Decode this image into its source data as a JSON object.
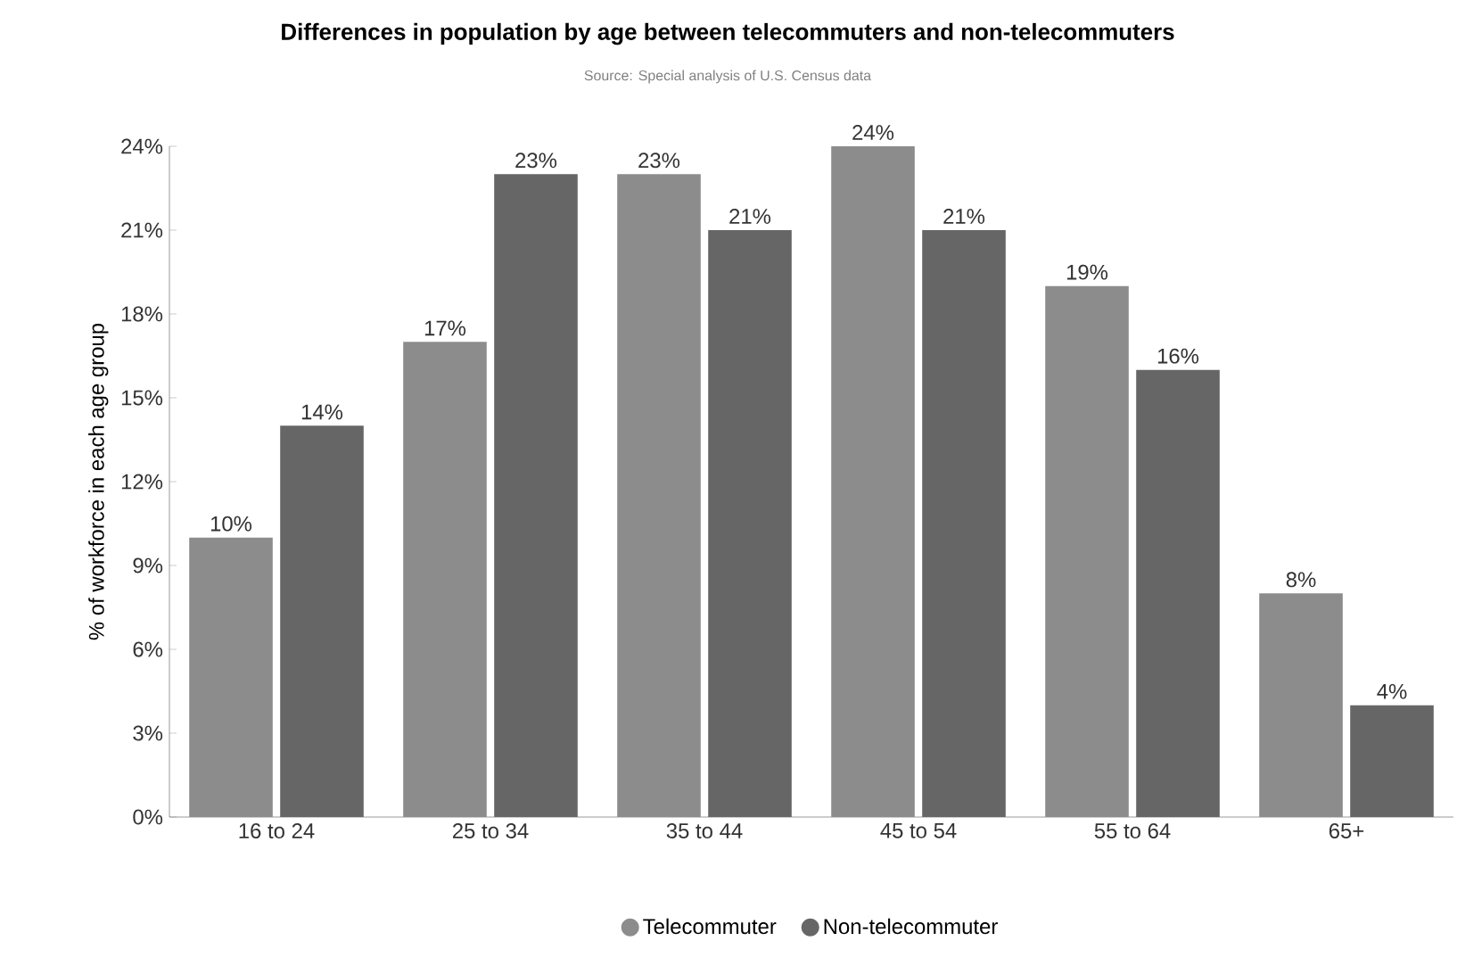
{
  "chart_data": {
    "type": "bar",
    "title": "Differences in population by age between telecommuters and non-telecommuters",
    "annotations": [
      "Source: Special analysis of U.S. Census data"
    ],
    "ylabel": "% of workforce in each age group",
    "categories": [
      "16 to 24",
      "25 to 34",
      "35 to 44",
      "45 to 54",
      "55 to 64",
      "65+"
    ],
    "series": [
      {
        "name": "Telecommuter",
        "color": "#8c8c8c",
        "values": [
          10,
          17,
          23,
          24,
          19,
          8
        ],
        "value_labels": [
          "10%",
          "17%",
          "23%",
          "24%",
          "19%",
          "8%"
        ]
      },
      {
        "name": "Non-telecommuter",
        "color": "#666666",
        "values": [
          14,
          23,
          21,
          21,
          16,
          4
        ],
        "value_labels": [
          "14%",
          "23%",
          "21%",
          "21%",
          "16%",
          "4%"
        ]
      }
    ],
    "ylim": [
      0,
      24
    ],
    "yticks": [
      {
        "value": 0,
        "label": "0%"
      },
      {
        "value": 3,
        "label": "3%"
      },
      {
        "value": 6,
        "label": "6%"
      },
      {
        "value": 9,
        "label": "9%"
      },
      {
        "value": 12,
        "label": "12%"
      },
      {
        "value": 15,
        "label": "15%"
      },
      {
        "value": 18,
        "label": "18%"
      },
      {
        "value": 21,
        "label": "21%"
      },
      {
        "value": 24,
        "label": "24%"
      }
    ],
    "legend": "bottom"
  }
}
